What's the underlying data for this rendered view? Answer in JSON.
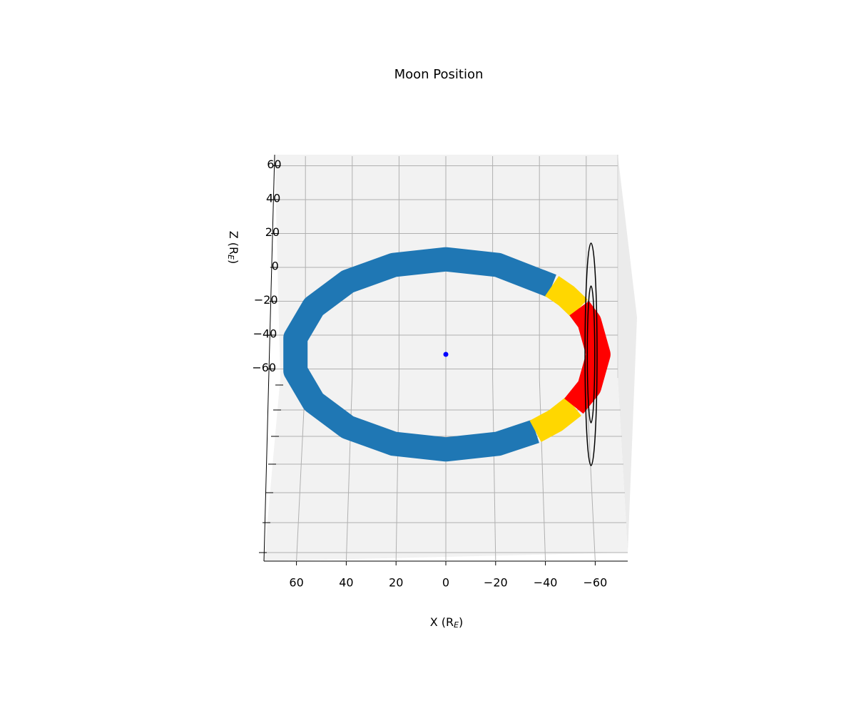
{
  "chart_data": {
    "type": "orbit3d",
    "title": "Moon Position",
    "xlabel": [
      "X (R",
      "E",
      ")"
    ],
    "zlabel": [
      "Z (R",
      "E",
      ")"
    ],
    "xlim": [
      72,
      -72
    ],
    "zlim": [
      -72,
      66
    ],
    "xticks": [
      60,
      40,
      20,
      0,
      {
        "value": -20,
        "label": "−20"
      },
      {
        "value": -40,
        "label": "−40"
      },
      {
        "value": -60,
        "label": "−60"
      }
    ],
    "zticks": [
      60,
      40,
      20,
      0,
      {
        "value": -20,
        "label": "−20"
      },
      {
        "value": -40,
        "label": "−40"
      },
      {
        "value": -60,
        "label": "−60"
      }
    ],
    "grid": true,
    "series": [
      {
        "color": "#1f77b4",
        "x": [
          -43.1,
          -21.2,
          0,
          21.2,
          39.9,
          53.7,
          61.1,
          61.1,
          53.7,
          39.9,
          21.2,
          0,
          -21.2,
          -36.4
        ],
        "y": [
          -44.6,
          -58.3,
          -62,
          -58.3,
          -47.5,
          -31.0,
          -10.8,
          10.8,
          31.0,
          47.5,
          58.3,
          62,
          58.3,
          50.2
        ]
      },
      {
        "color": "#ffd700",
        "x": [
          -36.4,
          -44.6,
          -52.0
        ],
        "y": [
          50.2,
          43.1,
          33.8
        ]
      },
      {
        "color": "#ffd700",
        "x": [
          -54.2,
          -48.9,
          -43.1
        ],
        "y": [
          -30.1,
          -38.2,
          -44.6
        ]
      },
      {
        "color": "#ff0000",
        "x": [
          -52.0,
          -58.3,
          -62,
          -58.3,
          -54.2
        ],
        "y": [
          33.8,
          21.2,
          0,
          -21.2,
          -30.1
        ]
      }
    ],
    "rings": [
      {
        "x": -59,
        "radius": 65,
        "color": "#000000"
      },
      {
        "x": -59,
        "radius": 40,
        "color": "#000000"
      }
    ],
    "earth": {
      "x": 0,
      "y": 0,
      "color": "#0000ff"
    }
  }
}
